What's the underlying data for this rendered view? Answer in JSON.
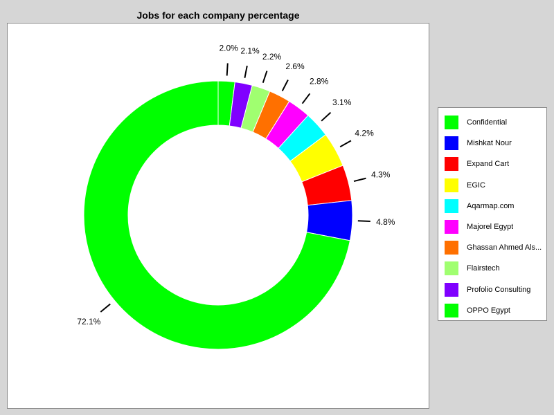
{
  "chart_data": {
    "type": "pie",
    "title": "Jobs for each company percentage",
    "donut": true,
    "legend_position": "right",
    "slices": [
      {
        "label": "OPPO Egypt",
        "value": 2.0,
        "value_label": "2.0%",
        "color": "#00ff00"
      },
      {
        "label": "Profolio Consulting",
        "value": 2.1,
        "value_label": "2.1%",
        "color": "#8000ff"
      },
      {
        "label": "Flairstech",
        "value": 2.2,
        "value_label": "2.2%",
        "color": "#a0ff70"
      },
      {
        "label": "Ghassan Ahmed Als...",
        "value": 2.6,
        "value_label": "2.6%",
        "color": "#ff7000"
      },
      {
        "label": "Majorel Egypt",
        "value": 2.8,
        "value_label": "2.8%",
        "color": "#ff00ff"
      },
      {
        "label": "Aqarmap.com",
        "value": 3.1,
        "value_label": "3.1%",
        "color": "#00ffff"
      },
      {
        "label": "EGIC",
        "value": 4.2,
        "value_label": "4.2%",
        "color": "#ffff00"
      },
      {
        "label": "Expand Cart",
        "value": 4.3,
        "value_label": "4.3%",
        "color": "#ff0000"
      },
      {
        "label": "Mishkat Nour",
        "value": 4.8,
        "value_label": "4.8%",
        "color": "#0000ff"
      },
      {
        "label": "Confidential",
        "value": 72.1,
        "value_label": "72.1%",
        "color": "#00ff00"
      }
    ],
    "legend_order": [
      "Confidential",
      "Mishkat Nour",
      "Expand Cart",
      "EGIC",
      "Aqarmap.com",
      "Majorel Egypt",
      "Ghassan Ahmed Als...",
      "Flairstech",
      "Profolio Consulting",
      "OPPO Egypt"
    ]
  }
}
